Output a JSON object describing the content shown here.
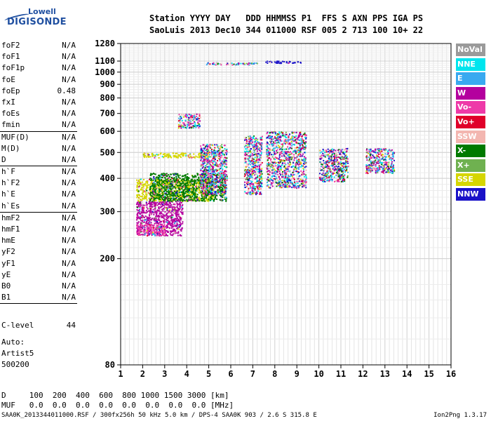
{
  "logo": {
    "line1": "Lowell",
    "line2": "DIGISONDE"
  },
  "header": {
    "row1": "Station YYYY DAY   DDD HHMMSS P1  FFS S AXN PPS IGA PS",
    "row2": "SaoLuis 2013 Dec10 344 011000 RSF 005 2 713 100 10+ 22"
  },
  "params": {
    "groups": [
      [
        [
          "foF2",
          "N/A"
        ],
        [
          "foF1",
          "N/A"
        ],
        [
          "foF1p",
          "N/A"
        ],
        [
          "foE",
          "N/A"
        ],
        [
          "foEp",
          "0.48"
        ],
        [
          "fxI",
          "N/A"
        ],
        [
          "foEs",
          "N/A"
        ],
        [
          "fmin",
          "N/A"
        ]
      ],
      [
        [
          "MUF(D)",
          "N/A"
        ],
        [
          "M(D)",
          "N/A"
        ],
        [
          "D",
          "N/A"
        ]
      ],
      [
        [
          "h`F",
          "N/A"
        ],
        [
          "h`F2",
          "N/A"
        ],
        [
          "h`E",
          "N/A"
        ],
        [
          "h`Es",
          "N/A"
        ]
      ],
      [
        [
          "hmF2",
          "N/A"
        ],
        [
          "hmF1",
          "N/A"
        ],
        [
          "hmE",
          "N/A"
        ],
        [
          "yF2",
          "N/A"
        ],
        [
          "yF1",
          "N/A"
        ],
        [
          "yE",
          "N/A"
        ],
        [
          "B0",
          "N/A"
        ],
        [
          "B1",
          "N/A"
        ]
      ]
    ],
    "clevel": {
      "name": "C-level",
      "value": "44"
    }
  },
  "auto": [
    "Auto:",
    "Artist5",
    "500200"
  ],
  "bottom": {
    "d_row": "D     100  200  400  600  800 1000 1500 3000 [km]",
    "muf_row": "MUF   0.0  0.0  0.0  0.0  0.0  0.0  0.0  0.0 [MHz]"
  },
  "footer": "SAA0K_2013344011000.RSF / 300fx256h 50 kHz 5.0 km / DPS-4 SAA0K 903 / 2.6 S 315.8 E",
  "version": "Ion2Png 1.3.17",
  "legend": [
    {
      "label": "NoVal",
      "color": "#9a9a9a"
    },
    {
      "label": "NNE",
      "color": "#00e5ee"
    },
    {
      "label": "E",
      "color": "#39a9f0"
    },
    {
      "label": "W",
      "color": "#b4009e"
    },
    {
      "label": "Vo-",
      "color": "#ee3aa8"
    },
    {
      "label": "Vo+",
      "color": "#e0002a"
    },
    {
      "label": "SSW",
      "color": "#f3b6b0"
    },
    {
      "label": "X-",
      "color": "#007a00"
    },
    {
      "label": "X+",
      "color": "#6fb150"
    },
    {
      "label": "SSE",
      "color": "#d6d600"
    },
    {
      "label": "NNW",
      "color": "#1a12c8"
    }
  ],
  "chart_data": {
    "type": "scatter",
    "title": "",
    "xlabel": "",
    "ylabel": "",
    "xlim": [
      1,
      16
    ],
    "ylim": [
      80,
      1280
    ],
    "yscale": "log",
    "x_ticks": [
      1,
      2,
      3,
      4,
      5,
      6,
      7,
      8,
      9,
      10,
      11,
      12,
      13,
      14,
      15,
      16
    ],
    "y_ticks": [
      80,
      200,
      300,
      400,
      500,
      600,
      700,
      800,
      900,
      1000,
      1100,
      1280
    ],
    "grid": true,
    "regions": [
      {
        "name": "low trace",
        "x": [
          1.7,
          3.8
        ],
        "y": [
          245,
          330
        ],
        "color": "W"
      },
      {
        "name": "low trace edge",
        "x": [
          1.7,
          3.0
        ],
        "y": [
          245,
          270
        ],
        "color": "Vo-"
      },
      {
        "name": "lower band",
        "x": [
          1.7,
          5.2
        ],
        "y": [
          330,
          400
        ],
        "color": "SSE"
      },
      {
        "name": "lower band mix",
        "x": [
          2.3,
          5.8
        ],
        "y": [
          330,
          420
        ],
        "color": "X-"
      },
      {
        "name": "diffuse band",
        "x": [
          2.0,
          5.0
        ],
        "y": [
          480,
          500
        ],
        "color": "SSE"
      },
      {
        "name": "scatter 5MHz",
        "x": [
          4.6,
          5.8
        ],
        "y": [
          350,
          540
        ],
        "color": "mixed"
      },
      {
        "name": "scatter 7MHz",
        "x": [
          6.6,
          7.4
        ],
        "y": [
          350,
          580
        ],
        "color": "mixed"
      },
      {
        "name": "scatter 8-9MHz",
        "x": [
          7.6,
          9.4
        ],
        "y": [
          370,
          600
        ],
        "color": "mixed"
      },
      {
        "name": "scatter 10-11MHz",
        "x": [
          10.0,
          11.3
        ],
        "y": [
          390,
          520
        ],
        "color": "mixed"
      },
      {
        "name": "scatter 12-13MHz",
        "x": [
          12.1,
          13.4
        ],
        "y": [
          420,
          520
        ],
        "color": "mixed"
      },
      {
        "name": "upper patch 4MHz",
        "x": [
          3.6,
          4.6
        ],
        "y": [
          620,
          700
        ],
        "color": "mixed"
      },
      {
        "name": "multihop 1100",
        "x": [
          7.5,
          9.3
        ],
        "y": [
          1085,
          1105
        ],
        "color": "NNW"
      },
      {
        "name": "multihop 1080",
        "x": [
          4.8,
          7.2
        ],
        "y": [
          1070,
          1090
        ],
        "color": "mixed"
      }
    ]
  }
}
